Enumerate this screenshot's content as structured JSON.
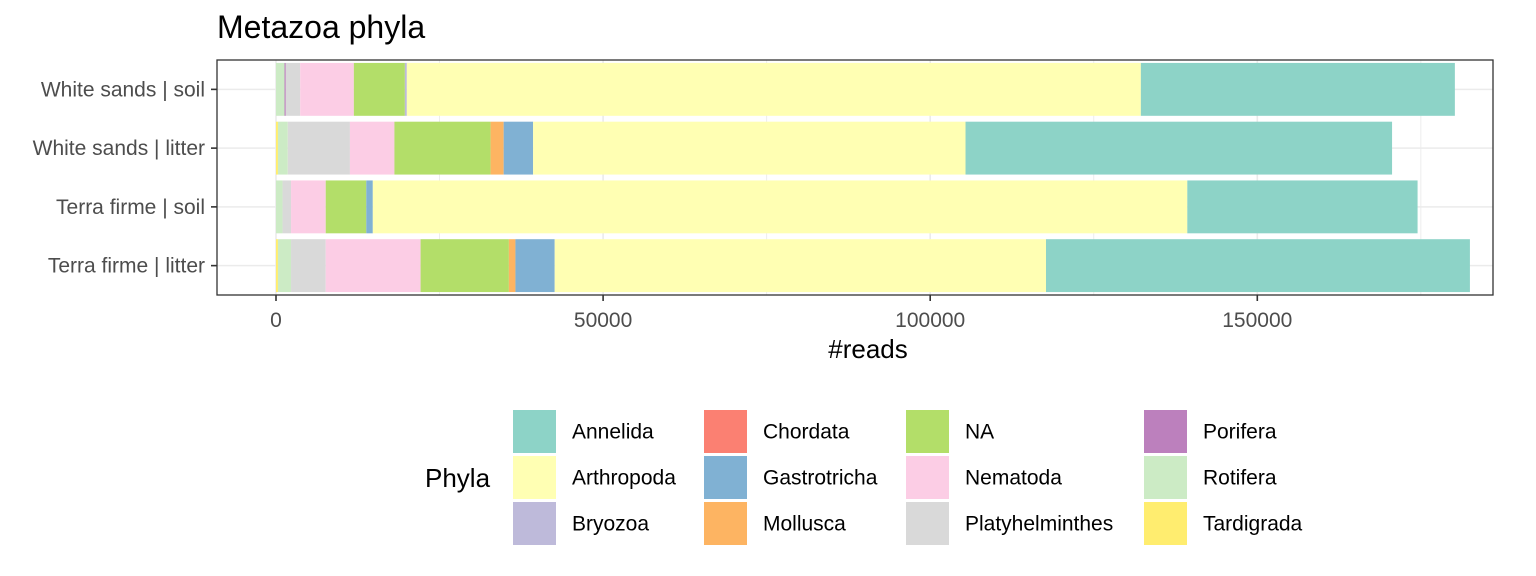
{
  "chart_data": {
    "type": "bar",
    "orientation": "horizontal",
    "stacked": true,
    "title": "Metazoa phyla",
    "xlabel": "#reads",
    "ylabel": "",
    "xlim": [
      -9000,
      187000
    ],
    "xticks": [
      0,
      50000,
      100000,
      150000
    ],
    "xtick_labels": [
      "0",
      "50000",
      "100000",
      "150000"
    ],
    "grid": true,
    "legend_title": "Phyla",
    "legend_position": "bottom",
    "categories": [
      "White sands | soil",
      "White sands | litter",
      "Terra firme | soil",
      "Terra firme | litter"
    ],
    "series": [
      {
        "name": "Tardigrada",
        "color": "#FFED6F",
        "values": [
          0,
          300,
          0,
          300
        ]
      },
      {
        "name": "Rotifera",
        "color": "#CCEBC5",
        "values": [
          1300,
          1500,
          1000,
          2000
        ]
      },
      {
        "name": "Porifera",
        "color": "#BC80BD",
        "values": [
          200,
          0,
          0,
          0
        ]
      },
      {
        "name": "Platyhelminthes",
        "color": "#D9D9D9",
        "values": [
          2200,
          9500,
          1300,
          5300
        ]
      },
      {
        "name": "Nematoda",
        "color": "#FCCDE5",
        "values": [
          8200,
          6800,
          5300,
          14500
        ]
      },
      {
        "name": "NA",
        "color": "#B3DE69",
        "values": [
          7800,
          14700,
          6200,
          13500
        ]
      },
      {
        "name": "Mollusca",
        "color": "#FDB462",
        "values": [
          0,
          2000,
          0,
          1000
        ]
      },
      {
        "name": "Gastrotricha",
        "color": "#80B1D3",
        "values": [
          0,
          4500,
          1000,
          6000
        ]
      },
      {
        "name": "Chordata",
        "color": "#FB8072",
        "values": [
          0,
          0,
          0,
          0
        ]
      },
      {
        "name": "Bryozoa",
        "color": "#BEBADA",
        "values": [
          300,
          0,
          0,
          0
        ]
      },
      {
        "name": "Arthropoda",
        "color": "#FFFFB3",
        "values": [
          112200,
          66100,
          124500,
          75100
        ]
      },
      {
        "name": "Annelida",
        "color": "#8DD3C7",
        "values": [
          48000,
          65200,
          35200,
          64800
        ]
      }
    ],
    "legend_order": [
      "Annelida",
      "Arthropoda",
      "Bryozoa",
      "Chordata",
      "Gastrotricha",
      "Mollusca",
      "NA",
      "Nematoda",
      "Platyhelminthes",
      "Porifera",
      "Rotifera",
      "Tardigrada"
    ]
  }
}
